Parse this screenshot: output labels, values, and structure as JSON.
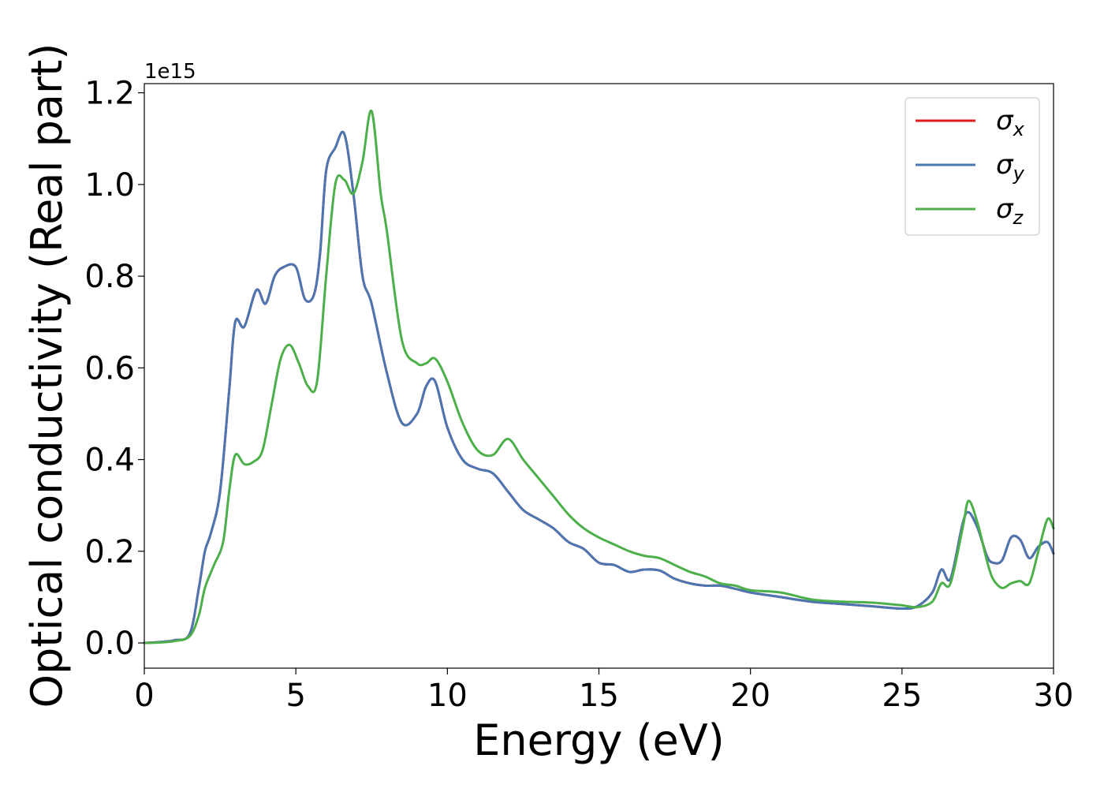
{
  "chart_data": {
    "type": "line",
    "title": "",
    "xlabel": "Energy (eV)",
    "ylabel": "Optical conductivity (Real part)",
    "y_offset_text": "1e15",
    "xlim": [
      0,
      30
    ],
    "ylim": [
      -0.055,
      1.22
    ],
    "xticks": [
      0,
      5,
      10,
      15,
      20,
      25,
      30
    ],
    "xtick_labels": [
      "0",
      "5",
      "10",
      "15",
      "20",
      "25",
      "30"
    ],
    "yticks": [
      0.0,
      0.2,
      0.4,
      0.6,
      0.8,
      1.0,
      1.2
    ],
    "ytick_labels": [
      "0.0",
      "0.2",
      "0.4",
      "0.6",
      "0.8",
      "1.0",
      "1.2"
    ],
    "grid": false,
    "legend": {
      "position": "top-right",
      "entries": [
        {
          "symbol": "σ",
          "sub": "x"
        },
        {
          "symbol": "σ",
          "sub": "y"
        },
        {
          "symbol": "σ",
          "sub": "z"
        }
      ]
    },
    "series": [
      {
        "key": "sigma_x",
        "color": "#e41a1c",
        "x": [
          0,
          0.5,
          1.0,
          1.5,
          1.8,
          2.0,
          2.2,
          2.5,
          2.8,
          3.0,
          3.3,
          3.7,
          4.0,
          4.3,
          4.6,
          5.0,
          5.3,
          5.6,
          5.8,
          6.0,
          6.3,
          6.6,
          6.9,
          7.2,
          7.5,
          8.0,
          8.5,
          9.0,
          9.3,
          9.6,
          10.0,
          10.5,
          11.0,
          11.5,
          12.0,
          12.5,
          13.0,
          13.5,
          14.0,
          14.5,
          15.0,
          15.5,
          16.0,
          16.5,
          17.0,
          17.5,
          18.0,
          18.5,
          19.0,
          19.5,
          20.0,
          21.0,
          22.0,
          23.0,
          24.0,
          25.0,
          25.5,
          26.0,
          26.3,
          26.6,
          27.0,
          27.2,
          27.5,
          27.8,
          28.0,
          28.3,
          28.6,
          28.9,
          29.2,
          29.5,
          29.8,
          30.0
        ],
        "values": [
          0.0,
          0.002,
          0.006,
          0.02,
          0.12,
          0.2,
          0.24,
          0.33,
          0.55,
          0.7,
          0.69,
          0.77,
          0.74,
          0.8,
          0.82,
          0.82,
          0.75,
          0.76,
          0.85,
          1.03,
          1.08,
          1.11,
          0.98,
          0.8,
          0.74,
          0.59,
          0.48,
          0.5,
          0.56,
          0.57,
          0.47,
          0.4,
          0.38,
          0.37,
          0.33,
          0.29,
          0.27,
          0.25,
          0.22,
          0.205,
          0.175,
          0.17,
          0.155,
          0.16,
          0.158,
          0.14,
          0.13,
          0.125,
          0.125,
          0.118,
          0.11,
          0.1,
          0.09,
          0.085,
          0.08,
          0.075,
          0.08,
          0.11,
          0.16,
          0.14,
          0.26,
          0.285,
          0.25,
          0.19,
          0.175,
          0.18,
          0.23,
          0.225,
          0.185,
          0.21,
          0.22,
          0.195
        ]
      },
      {
        "key": "sigma_y",
        "color": "#4a77b2",
        "x": [
          0,
          0.5,
          1.0,
          1.5,
          1.8,
          2.0,
          2.2,
          2.5,
          2.8,
          3.0,
          3.3,
          3.7,
          4.0,
          4.3,
          4.6,
          5.0,
          5.3,
          5.6,
          5.8,
          6.0,
          6.3,
          6.6,
          6.9,
          7.2,
          7.5,
          8.0,
          8.5,
          9.0,
          9.3,
          9.6,
          10.0,
          10.5,
          11.0,
          11.5,
          12.0,
          12.5,
          13.0,
          13.5,
          14.0,
          14.5,
          15.0,
          15.5,
          16.0,
          16.5,
          17.0,
          17.5,
          18.0,
          18.5,
          19.0,
          19.5,
          20.0,
          21.0,
          22.0,
          23.0,
          24.0,
          25.0,
          25.5,
          26.0,
          26.3,
          26.6,
          27.0,
          27.2,
          27.5,
          27.8,
          28.0,
          28.3,
          28.6,
          28.9,
          29.2,
          29.5,
          29.8,
          30.0
        ],
        "values": [
          0.0,
          0.002,
          0.006,
          0.02,
          0.12,
          0.2,
          0.24,
          0.33,
          0.55,
          0.7,
          0.69,
          0.77,
          0.74,
          0.8,
          0.82,
          0.82,
          0.75,
          0.76,
          0.85,
          1.03,
          1.08,
          1.11,
          0.98,
          0.8,
          0.74,
          0.59,
          0.48,
          0.5,
          0.56,
          0.57,
          0.47,
          0.4,
          0.38,
          0.37,
          0.33,
          0.29,
          0.27,
          0.25,
          0.22,
          0.205,
          0.175,
          0.17,
          0.155,
          0.16,
          0.158,
          0.14,
          0.13,
          0.125,
          0.125,
          0.118,
          0.11,
          0.1,
          0.09,
          0.085,
          0.08,
          0.075,
          0.08,
          0.11,
          0.16,
          0.14,
          0.26,
          0.285,
          0.25,
          0.19,
          0.175,
          0.18,
          0.23,
          0.225,
          0.185,
          0.21,
          0.22,
          0.195
        ]
      },
      {
        "key": "sigma_z",
        "color": "#4daf4a",
        "x": [
          0,
          0.5,
          1.0,
          1.5,
          1.8,
          2.0,
          2.3,
          2.6,
          2.8,
          3.0,
          3.3,
          3.6,
          3.9,
          4.2,
          4.5,
          4.8,
          5.1,
          5.4,
          5.7,
          6.0,
          6.3,
          6.6,
          6.9,
          7.2,
          7.5,
          7.8,
          8.0,
          8.5,
          9.0,
          9.3,
          9.6,
          10.0,
          10.5,
          11.0,
          11.5,
          12.0,
          12.5,
          13.0,
          13.5,
          14.0,
          14.5,
          15.0,
          15.5,
          16.0,
          16.5,
          17.0,
          17.5,
          18.0,
          18.5,
          19.0,
          19.5,
          20.0,
          21.0,
          22.0,
          23.0,
          24.0,
          25.0,
          25.5,
          26.0,
          26.3,
          26.6,
          27.0,
          27.2,
          27.5,
          27.8,
          28.0,
          28.3,
          28.6,
          28.9,
          29.2,
          29.5,
          29.8,
          30.0
        ],
        "values": [
          0.0,
          0.001,
          0.004,
          0.015,
          0.06,
          0.12,
          0.17,
          0.22,
          0.33,
          0.41,
          0.39,
          0.395,
          0.42,
          0.52,
          0.62,
          0.65,
          0.61,
          0.56,
          0.57,
          0.8,
          1.0,
          1.01,
          0.98,
          1.05,
          1.16,
          0.98,
          0.9,
          0.66,
          0.61,
          0.61,
          0.62,
          0.57,
          0.48,
          0.42,
          0.41,
          0.445,
          0.4,
          0.36,
          0.32,
          0.28,
          0.25,
          0.23,
          0.215,
          0.2,
          0.19,
          0.185,
          0.17,
          0.155,
          0.145,
          0.13,
          0.125,
          0.115,
          0.11,
          0.095,
          0.09,
          0.088,
          0.082,
          0.078,
          0.09,
          0.13,
          0.13,
          0.25,
          0.31,
          0.26,
          0.18,
          0.14,
          0.12,
          0.13,
          0.135,
          0.13,
          0.2,
          0.27,
          0.25
        ]
      }
    ]
  }
}
